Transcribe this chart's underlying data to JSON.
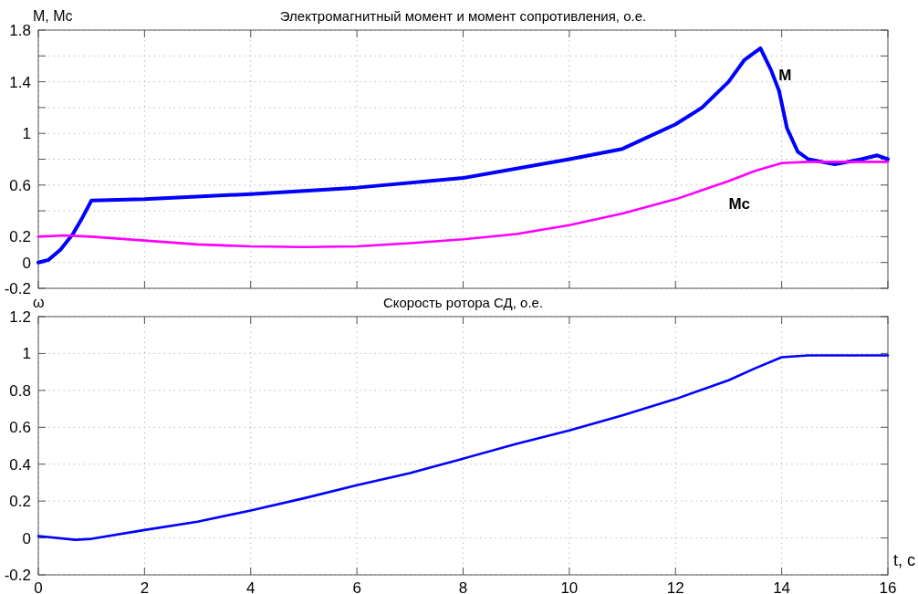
{
  "chart_data": [
    {
      "type": "line",
      "title": "Электромагнитный момент и момент сопротивления, о.е.",
      "ylabel": "M, Mc",
      "xlim": [
        0,
        16
      ],
      "ylim": [
        -0.2,
        1.8
      ],
      "xticks": [
        0,
        2,
        4,
        6,
        8,
        10,
        12,
        14,
        16
      ],
      "yticks": [
        -0.2,
        0,
        0.2,
        {
          "value": 0.4,
          "label": null
        },
        0.6,
        {
          "value": 0.8,
          "label": null
        },
        1,
        {
          "value": 1.2,
          "label": null
        },
        1.4,
        {
          "value": 1.6,
          "label": null
        },
        1.8
      ],
      "grid": true,
      "tick_labels": "y",
      "series": [
        {
          "name": "M",
          "color": "#0000ff",
          "x": [
            0,
            0.19,
            0.42,
            0.65,
            0.82,
            1,
            2,
            4,
            6,
            8,
            10,
            11,
            12,
            12.5,
            13,
            13.3,
            13.6,
            13.8,
            13.95,
            14.1,
            14.3,
            14.5,
            15,
            15.5,
            15.8,
            16
          ],
          "values": [
            0,
            0.02,
            0.1,
            0.22,
            0.34,
            0.48,
            0.49,
            0.53,
            0.58,
            0.655,
            0.8,
            0.88,
            1.07,
            1.2,
            1.4,
            1.57,
            1.66,
            1.49,
            1.33,
            1.04,
            0.86,
            0.8,
            0.76,
            0.8,
            0.83,
            0.8
          ]
        },
        {
          "name": "Mc",
          "color": "#ff00ff",
          "x": [
            0,
            0.5,
            1,
            2,
            3,
            4,
            5,
            6,
            7,
            8,
            9,
            10,
            11,
            12,
            13,
            13.5,
            14,
            14.5,
            16
          ],
          "values": [
            0.2,
            0.21,
            0.2,
            0.17,
            0.14,
            0.125,
            0.12,
            0.125,
            0.15,
            0.18,
            0.22,
            0.29,
            0.38,
            0.49,
            0.63,
            0.71,
            0.77,
            0.78,
            0.78
          ]
        }
      ]
    },
    {
      "type": "line",
      "title": "Скорость ротора СД, о.е.",
      "ylabel": "ω",
      "xlabel": "t, c",
      "xlim": [
        0,
        16
      ],
      "ylim": [
        -0.2,
        1.2
      ],
      "xticks": [
        0,
        2,
        4,
        6,
        8,
        10,
        12,
        14,
        16
      ],
      "yticks": [
        -0.2,
        0,
        0.2,
        0.4,
        0.6,
        0.8,
        1,
        1.2
      ],
      "grid": true,
      "series": [
        {
          "color": "#0000ff",
          "x": [
            0,
            0.7,
            1,
            2,
            3,
            4,
            5,
            6,
            7,
            8,
            9,
            10,
            11,
            12,
            13,
            13.5,
            14,
            14.5,
            16
          ],
          "values": [
            0.01,
            -0.01,
            -0.005,
            0.043,
            0.088,
            0.149,
            0.215,
            0.286,
            0.352,
            0.43,
            0.51,
            0.583,
            0.665,
            0.753,
            0.855,
            0.92,
            0.98,
            0.99,
            0.99
          ]
        }
      ]
    }
  ]
}
